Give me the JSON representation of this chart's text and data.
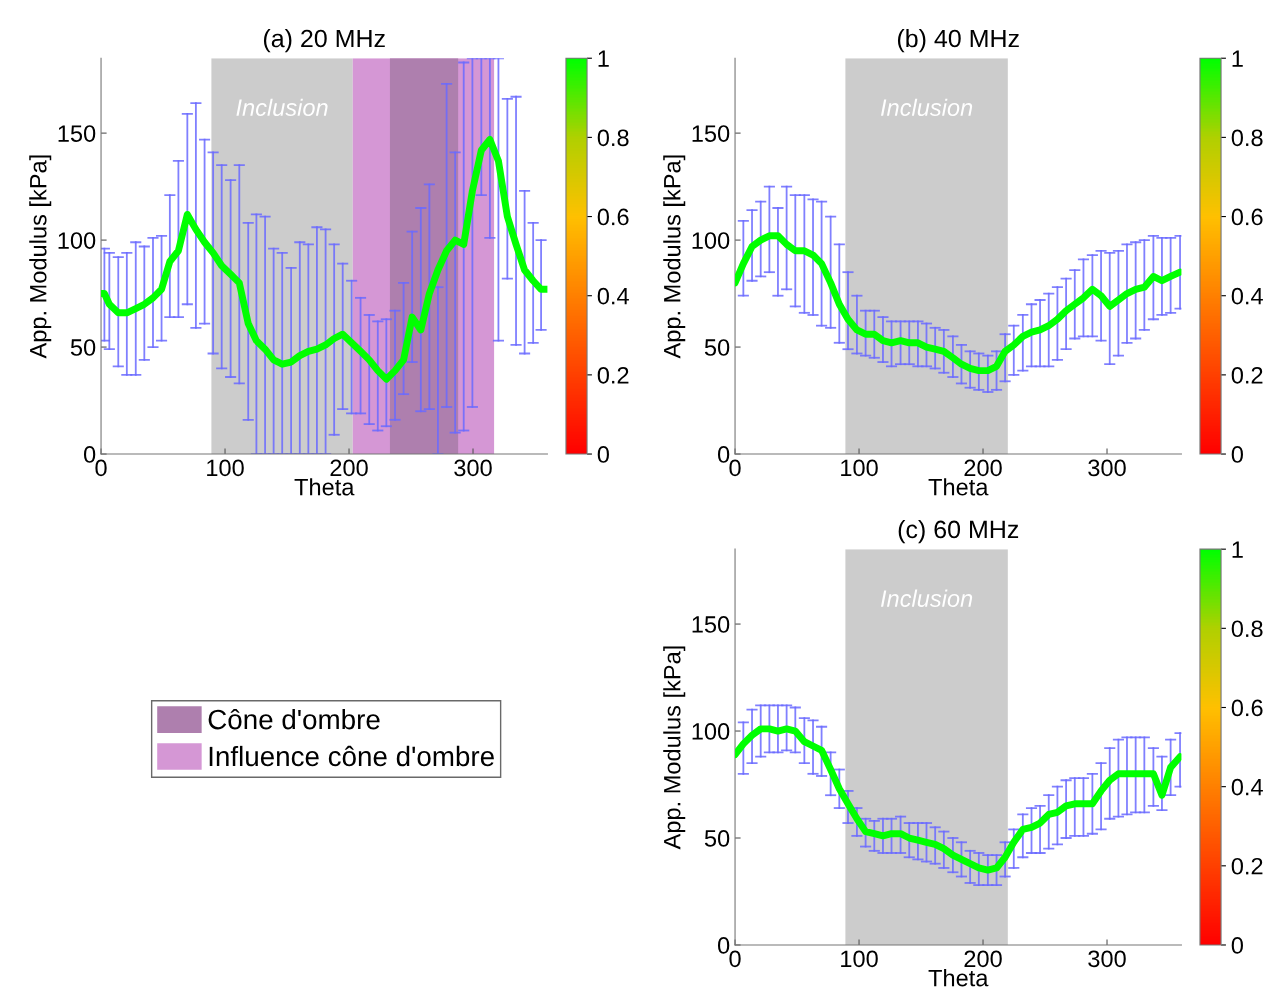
{
  "chart_data": [
    {
      "type": "line",
      "title": "(a) 20 MHz",
      "xlabel": "Theta",
      "ylabel": "App. Modulus [kPa]",
      "xlim": [
        0,
        360
      ],
      "ylim": [
        0,
        185
      ],
      "xticks": [
        0,
        100,
        200,
        300
      ],
      "yticks": [
        0,
        50,
        100,
        150
      ],
      "clim": [
        0,
        1
      ],
      "cticks": [
        0,
        0.2,
        0.4,
        0.6,
        0.8,
        1
      ],
      "grid": false,
      "legend": "bottom left",
      "bands": [
        {
          "axis": "x",
          "from": 89,
          "to": 203,
          "color": "#cccccc"
        },
        {
          "axis": "x",
          "from": 203,
          "to": 317,
          "color": "#d597d5",
          "label": "Influence cône d'ombre"
        },
        {
          "axis": "x",
          "from": 233,
          "to": 288,
          "color": "#ae7fae",
          "label": "Cône d'ombre"
        }
      ],
      "annotations": [
        "Inclusion"
      ],
      "series": [
        {
          "color": "#00ff00",
          "x": [
            0,
            2.7,
            6.7,
            13.9,
            20.8,
            28,
            34.9,
            41.9,
            48.8,
            55.5,
            62.4,
            69.6,
            76.5,
            83.5,
            90.4,
            97.3,
            104.5,
            111.5,
            118.7,
            125.3,
            132.3,
            139.2,
            146.1,
            153.3,
            160.3,
            167.2,
            174.1,
            181.1,
            188,
            194.9,
            202.1,
            209.3,
            216.3,
            223.2,
            230.1,
            237.1,
            244,
            250.9,
            257.9,
            264.8,
            271.7,
            278.7,
            285.6,
            292.5,
            299.5,
            306.7,
            313.6,
            320.5,
            327.7,
            334.7,
            341.6,
            348.5,
            354.9,
            360
          ],
          "values": [
            75,
            75,
            70,
            66,
            66,
            68,
            70,
            73,
            77,
            90,
            95,
            112,
            105,
            99,
            94,
            88,
            84,
            80,
            61,
            53,
            49,
            44,
            42,
            43,
            46,
            48,
            49,
            51,
            54,
            56,
            52,
            48,
            44,
            39,
            35,
            39,
            44,
            64,
            58,
            75,
            86,
            95,
            100,
            98,
            123,
            142,
            147,
            137,
            111,
            98,
            86,
            81,
            77,
            77
          ],
          "errors": [
            null,
            [
              53,
              96
            ],
            [
              49,
              94
            ],
            [
              41,
              92
            ],
            [
              37,
              94
            ],
            [
              37,
              99
            ],
            [
              44,
              97
            ],
            [
              50,
              101
            ],
            [
              53,
              102
            ],
            [
              64,
              121
            ],
            [
              64,
              137
            ],
            [
              70,
              159
            ],
            [
              59,
              164
            ],
            [
              61,
              147
            ],
            [
              47,
              141
            ],
            [
              40,
              135
            ],
            [
              36,
              128
            ],
            [
              33,
              135
            ],
            [
              16,
              108
            ],
            [
              0,
              112
            ],
            [
              0,
              111
            ],
            [
              0,
              96
            ],
            [
              0,
              94
            ],
            [
              0,
              87
            ],
            [
              0,
              99
            ],
            [
              0,
              98
            ],
            [
              0,
              106
            ],
            [
              0,
              105
            ],
            [
              9,
              98
            ],
            [
              21,
              89
            ],
            [
              19,
              81
            ],
            [
              19,
              73
            ],
            [
              14,
              65
            ],
            [
              11,
              62
            ],
            [
              13,
              63
            ],
            [
              16,
              67
            ],
            [
              28,
              80
            ],
            [
              43,
              104
            ],
            [
              20,
              115
            ],
            [
              21,
              126
            ],
            [
              0,
              78
            ],
            [
              22,
              173
            ],
            [
              10,
              141
            ],
            [
              11,
              183
            ],
            [
              22,
              185
            ],
            [
              121,
              185
            ],
            [
              101,
              185
            ],
            [
              53,
              185
            ],
            [
              82,
              166
            ],
            [
              51,
              167
            ],
            [
              47,
              123
            ],
            [
              52,
              108
            ],
            [
              58,
              100
            ],
            null
          ]
        }
      ]
    },
    {
      "type": "line",
      "title": "(b) 40 MHz",
      "xlabel": "Theta",
      "ylabel": "App. Modulus [kPa]",
      "xlim": [
        0,
        360
      ],
      "ylim": [
        0,
        185
      ],
      "xticks": [
        0,
        100,
        200,
        300
      ],
      "yticks": [
        0,
        50,
        100,
        150
      ],
      "clim": [
        0,
        1
      ],
      "cticks": [
        0,
        0.2,
        0.4,
        0.6,
        0.8,
        1
      ],
      "grid": false,
      "bands": [
        {
          "axis": "x",
          "from": 89,
          "to": 220,
          "color": "#cccccc"
        }
      ],
      "annotations": [
        "Inclusion"
      ],
      "series": [
        {
          "color": "#00ff00",
          "x": [
            0,
            6.7,
            13.7,
            20.7,
            27.7,
            34.6,
            41.6,
            48.6,
            55.9,
            62.9,
            69.8,
            77.1,
            84.1,
            91.1,
            98.3,
            105.3,
            112.3,
            119.3,
            126.2,
            133.5,
            140.5,
            147.5,
            154.4,
            161.4,
            168.4,
            175.7,
            182.6,
            189.6,
            196.6,
            203.9,
            210.9,
            217.8,
            224.8,
            232.1,
            239.1,
            246,
            253,
            260,
            267,
            274,
            281,
            288.2,
            295.2,
            302.2,
            309.2,
            316.1,
            323.1,
            330.1,
            337.4,
            344.3,
            351.3,
            358.9
          ],
          "values": [
            80,
            89,
            97,
            100,
            102,
            102,
            98,
            95,
            95,
            93,
            89,
            80,
            70,
            63,
            58,
            56,
            56,
            53,
            52,
            53,
            52,
            52,
            50,
            49,
            48,
            45,
            42,
            40,
            39,
            39,
            41,
            48,
            51,
            55,
            57,
            58,
            60,
            63,
            67,
            70,
            73,
            77,
            74,
            69,
            72,
            75,
            77,
            78,
            83,
            81,
            83,
            85
          ],
          "errors": [
            null,
            [
              74,
              109
            ],
            [
              81,
              114
            ],
            [
              83,
              118
            ],
            [
              85,
              125
            ],
            [
              74,
              115
            ],
            [
              77,
              125
            ],
            [
              69,
              121
            ],
            [
              66,
              121
            ],
            [
              65,
              119
            ],
            [
              60,
              118
            ],
            [
              59,
              111
            ],
            [
              52,
              98
            ],
            [
              49,
              85
            ],
            [
              47,
              74
            ],
            [
              46,
              67
            ],
            [
              45,
              67
            ],
            [
              43,
              64
            ],
            [
              41,
              62
            ],
            [
              42,
              62
            ],
            [
              42,
              62
            ],
            [
              41,
              62
            ],
            [
              41,
              61
            ],
            [
              40,
              59
            ],
            [
              38,
              58
            ],
            [
              36,
              55
            ],
            [
              33,
              51
            ],
            [
              31,
              48
            ],
            [
              30,
              47
            ],
            [
              29,
              46
            ],
            [
              30,
              48
            ],
            [
              34,
              56
            ],
            [
              37,
              60
            ],
            [
              39,
              65
            ],
            [
              41,
              70
            ],
            [
              41,
              72
            ],
            [
              41,
              75
            ],
            [
              44,
              78
            ],
            [
              49,
              82
            ],
            [
              54,
              86
            ],
            [
              55,
              91
            ],
            [
              55,
              93
            ],
            [
              53,
              95
            ],
            [
              42,
              94
            ],
            [
              46,
              95
            ],
            [
              52,
              98
            ],
            [
              54,
              99
            ],
            [
              58,
              100
            ],
            [
              63,
              102
            ],
            [
              65,
              101
            ],
            [
              66,
              101
            ],
            [
              68,
              102
            ]
          ]
        }
      ]
    },
    {
      "type": "line",
      "title": "(c) 60 MHz",
      "xlabel": "Theta",
      "ylabel": "App. Modulus [kPa]",
      "xlim": [
        0,
        360
      ],
      "ylim": [
        0,
        185
      ],
      "xticks": [
        0,
        100,
        200,
        300
      ],
      "yticks": [
        0,
        50,
        100,
        150
      ],
      "clim": [
        0,
        1
      ],
      "cticks": [
        0,
        0.2,
        0.4,
        0.6,
        0.8,
        1
      ],
      "grid": false,
      "bands": [
        {
          "axis": "x",
          "from": 89,
          "to": 220,
          "color": "#cccccc"
        }
      ],
      "annotations": [
        "Inclusion"
      ],
      "series": [
        {
          "color": "#00ff00",
          "x": [
            0,
            6.7,
            13.7,
            20.7,
            27.7,
            34.6,
            41.6,
            48.6,
            55.9,
            62.9,
            69.8,
            77.1,
            84.1,
            91.1,
            98.3,
            105.3,
            112.3,
            119.3,
            126.2,
            133.5,
            140.5,
            147.5,
            154.4,
            161.4,
            168.4,
            175.7,
            182.6,
            189.6,
            196.6,
            203.9,
            210.9,
            217.8,
            224.8,
            232.1,
            239.1,
            246,
            253,
            260,
            267,
            274,
            281,
            288.2,
            295.2,
            302.2,
            309.2,
            316.1,
            323.1,
            330.1,
            337.4,
            344.3,
            351.3,
            358.9
          ],
          "values": [
            89,
            94,
            98,
            101,
            101,
            100,
            101,
            100,
            95,
            93,
            91,
            82,
            73,
            66,
            59,
            53,
            52,
            51,
            52,
            52,
            50,
            49,
            48,
            47,
            45,
            42,
            40,
            38,
            36,
            35,
            36,
            41,
            48,
            54,
            55,
            57,
            61,
            62,
            65,
            66,
            66,
            66,
            72,
            77,
            80,
            80,
            80,
            80,
            80,
            70,
            83,
            88
          ],
          "errors": [
            null,
            [
              80,
              104
            ],
            [
              85,
              110
            ],
            [
              88,
              112
            ],
            [
              90,
              112
            ],
            [
              90,
              112
            ],
            [
              91,
              112
            ],
            [
              90,
              111
            ],
            [
              85,
              106
            ],
            [
              80,
              105
            ],
            [
              79,
              102
            ],
            [
              70,
              90
            ],
            [
              64,
              82
            ],
            [
              57,
              72
            ],
            [
              51,
              64
            ],
            [
              46,
              59
            ],
            [
              44,
              58
            ],
            [
              43,
              59
            ],
            [
              43,
              59
            ],
            [
              43,
              60
            ],
            [
              41,
              57
            ],
            [
              40,
              57
            ],
            [
              39,
              57
            ],
            [
              38,
              55
            ],
            [
              36,
              53
            ],
            [
              34,
              50
            ],
            [
              32,
              48
            ],
            [
              29,
              44
            ],
            [
              28,
              43
            ],
            [
              28,
              42
            ],
            [
              28,
              42
            ],
            [
              32,
              48
            ],
            [
              36,
              54
            ],
            [
              41,
              61
            ],
            [
              43,
              64
            ],
            [
              43,
              65
            ],
            [
              45,
              70
            ],
            [
              47,
              74
            ],
            [
              50,
              77
            ],
            [
              51,
              78
            ],
            [
              51,
              78
            ],
            [
              52,
              80
            ],
            [
              54,
              85
            ],
            [
              59,
              92
            ],
            [
              60,
              96
            ],
            [
              61,
              97
            ],
            [
              62,
              97
            ],
            [
              62,
              97
            ],
            [
              65,
              92
            ],
            [
              63,
              88
            ],
            [
              70,
              96
            ],
            [
              74,
              99
            ]
          ]
        }
      ]
    }
  ]
}
